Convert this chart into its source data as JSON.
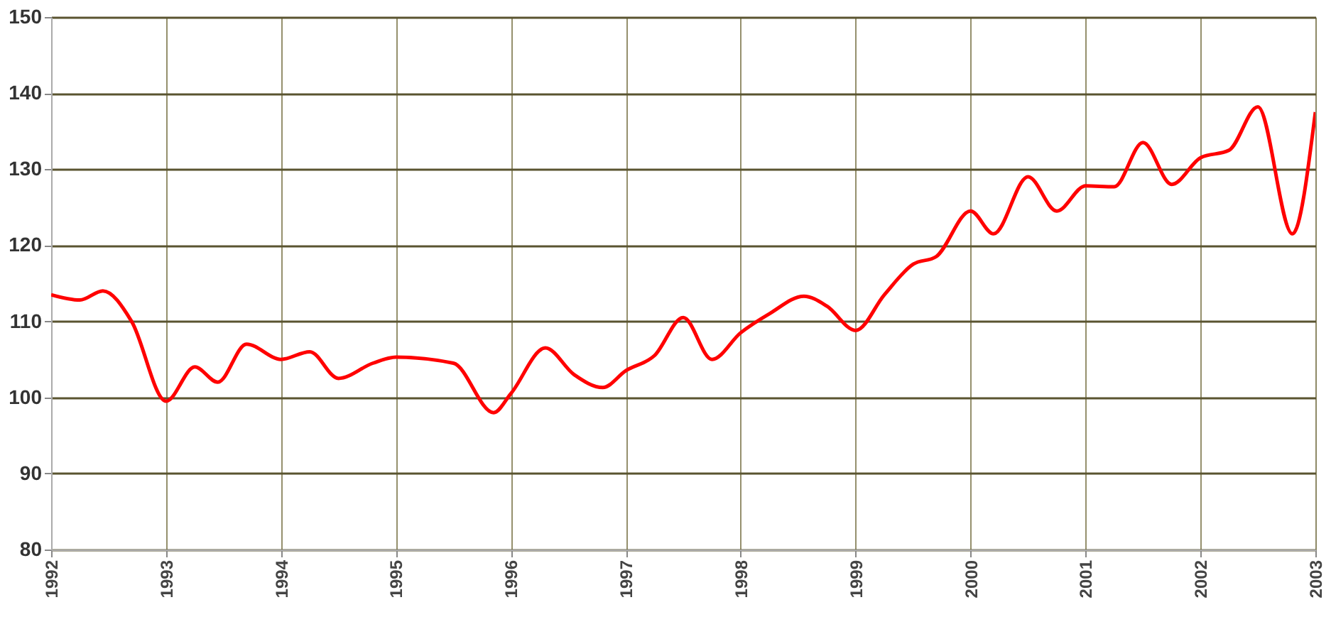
{
  "chart_data": {
    "type": "line",
    "x": [
      1992.0,
      1992.25,
      1992.45,
      1992.7,
      1993.0,
      1993.25,
      1993.45,
      1993.7,
      1994.0,
      1994.25,
      1994.5,
      1994.8,
      1995.0,
      1995.5,
      1995.85,
      1996.0,
      1996.3,
      1996.55,
      1996.8,
      1997.0,
      1997.25,
      1997.5,
      1997.75,
      1998.0,
      1998.25,
      1998.55,
      1998.75,
      1999.0,
      1999.25,
      1999.5,
      1999.7,
      2000.0,
      2000.2,
      2000.5,
      2000.75,
      2001.0,
      2001.25,
      2001.5,
      2001.75,
      2002.0,
      2002.25,
      2002.5,
      2002.8,
      2003.0
    ],
    "series": [
      {
        "color": "#ff0000",
        "values": [
          113.5,
          112.8,
          114,
          110,
          99.5,
          104,
          102,
          107,
          105,
          106,
          102.5,
          104.5,
          105.3,
          104.5,
          98,
          100.5,
          106.5,
          103,
          101.3,
          103.5,
          105.5,
          110.5,
          105,
          108.5,
          111,
          113.3,
          112,
          108.8,
          113.5,
          117.5,
          118.5,
          124.5,
          121.5,
          129,
          124.5,
          127.8,
          127.7,
          133.5,
          128,
          131.5,
          132.5,
          138.2,
          121.5,
          137.5
        ]
      }
    ],
    "xlim": [
      1992,
      2003
    ],
    "xticks": [
      1992,
      1993,
      1994,
      1995,
      1996,
      1997,
      1998,
      1999,
      2000,
      2001,
      2002,
      2003
    ],
    "ylim": [
      80,
      150
    ],
    "yticks": [
      80,
      90,
      100,
      110,
      120,
      130,
      140,
      150
    ],
    "grid": true,
    "marker": "none",
    "line_style": "solid",
    "legend": false
  }
}
